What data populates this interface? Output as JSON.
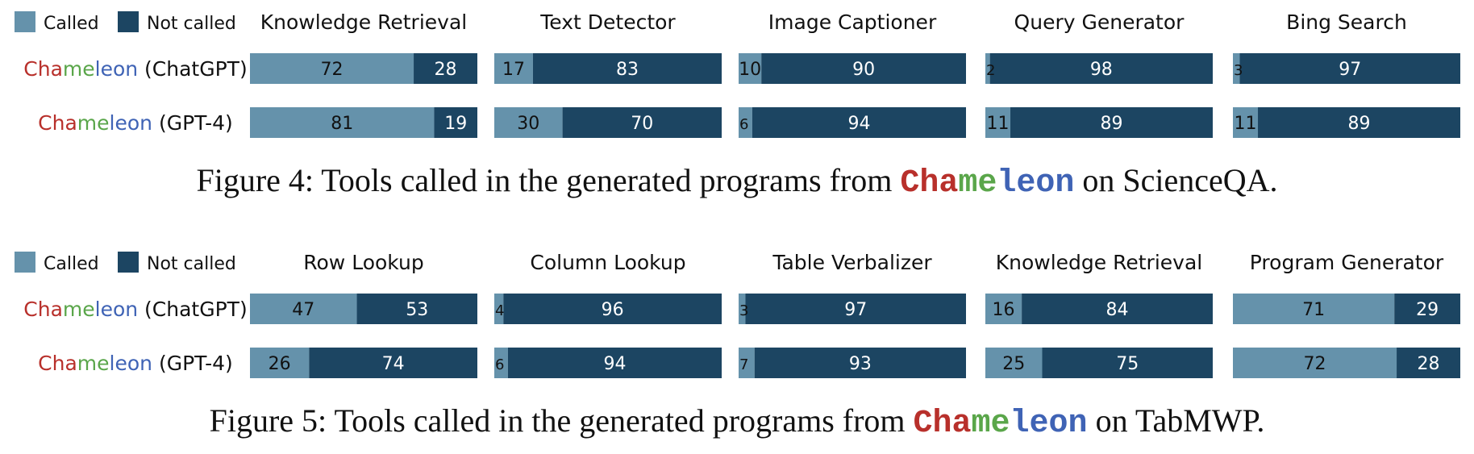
{
  "brand": {
    "name_parts": [
      "Cha",
      "me",
      "leon"
    ],
    "colors": [
      "#b8302b",
      "#5aa64a",
      "#3f63b5"
    ]
  },
  "row_labels": [
    "(ChatGPT)",
    "(GPT-4)"
  ],
  "colors": {
    "called": "#6592ab",
    "not_called": "#1c4562"
  },
  "chart_data": [
    {
      "type": "bar",
      "stacked": true,
      "orientation": "horizontal",
      "legend": [
        "Called",
        "Not called"
      ],
      "legend_position": "top-left",
      "xlim": [
        0,
        100
      ],
      "caption": {
        "prefix": "Figure 4: Tools called in the generated programs from ",
        "suffix": " on ScienceQA."
      },
      "panels": [
        {
          "title": "Knowledge Retrieval",
          "called": [
            72,
            81
          ],
          "not_called": [
            28,
            19
          ]
        },
        {
          "title": "Text Detector",
          "called": [
            17,
            30
          ],
          "not_called": [
            83,
            70
          ]
        },
        {
          "title": "Image Captioner",
          "called": [
            10,
            6
          ],
          "not_called": [
            90,
            94
          ]
        },
        {
          "title": "Query Generator",
          "called": [
            2,
            11
          ],
          "not_called": [
            98,
            89
          ]
        },
        {
          "title": "Bing Search",
          "called": [
            3,
            11
          ],
          "not_called": [
            97,
            89
          ]
        }
      ]
    },
    {
      "type": "bar",
      "stacked": true,
      "orientation": "horizontal",
      "legend": [
        "Called",
        "Not called"
      ],
      "legend_position": "top-left",
      "xlim": [
        0,
        100
      ],
      "caption": {
        "prefix": "Figure 5: Tools called in the generated programs from ",
        "suffix": " on TabMWP."
      },
      "panels": [
        {
          "title": "Row Lookup",
          "called": [
            47,
            26
          ],
          "not_called": [
            53,
            74
          ]
        },
        {
          "title": "Column Lookup",
          "called": [
            4,
            6
          ],
          "not_called": [
            96,
            94
          ]
        },
        {
          "title": "Table Verbalizer",
          "called": [
            3,
            7
          ],
          "not_called": [
            97,
            93
          ]
        },
        {
          "title": "Knowledge Retrieval",
          "called": [
            16,
            25
          ],
          "not_called": [
            84,
            75
          ]
        },
        {
          "title": "Program Generator",
          "called": [
            71,
            72
          ],
          "not_called": [
            29,
            28
          ]
        }
      ]
    }
  ]
}
